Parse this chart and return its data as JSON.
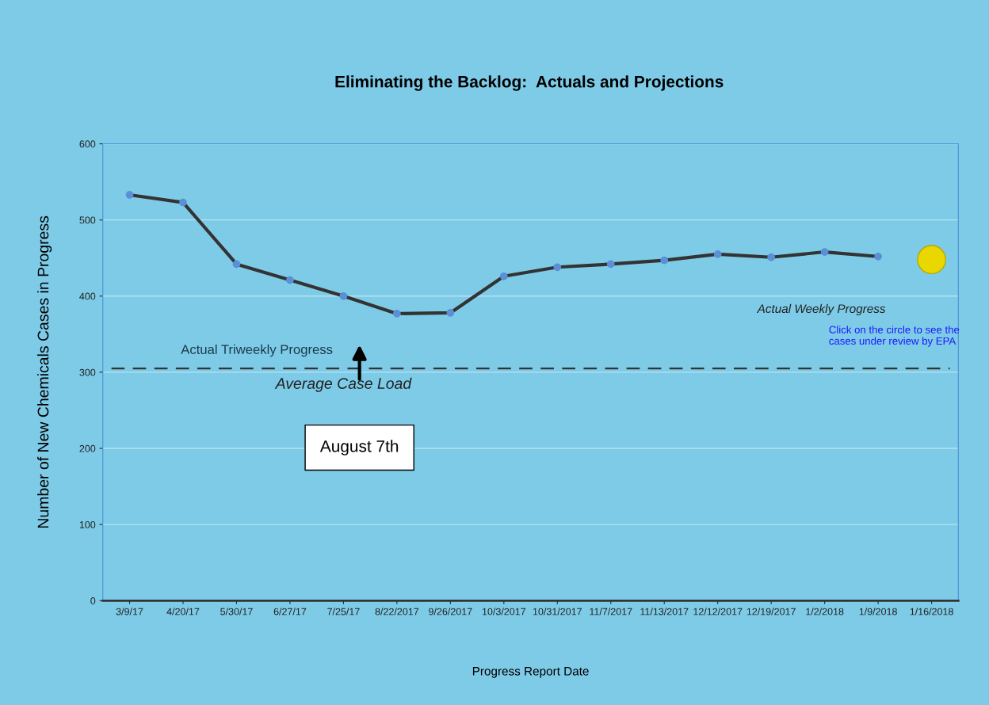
{
  "chart_data": {
    "type": "line",
    "title": "Eliminating the Backlog:  Actuals and Projections",
    "xlabel": "Progress Report Date",
    "ylabel": "Number of New Chemicals Cases in Progress",
    "categories": [
      "3/9/17",
      "4/20/17",
      "5/30/17",
      "6/27/17",
      "7/25/17",
      "8/22/2017",
      "9/26/2017",
      "10/3/2017",
      "10/31/2017",
      "11/7/2017",
      "11/13/2017",
      "12/12/2017",
      "12/19/2017",
      "1/2/2018",
      "1/9/2018",
      "1/16/2018"
    ],
    "series": [
      {
        "color": "#333333",
        "marker": "circle",
        "line_style": "solid",
        "values": [
          533,
          523,
          442,
          421,
          400,
          377,
          378,
          426,
          438,
          442,
          447,
          455,
          451,
          458,
          452,
          null
        ]
      },
      {
        "type": "scatter",
        "color": "#e8d800",
        "marker": "circle",
        "x": [
          "1/16/2018"
        ],
        "values": [
          448
        ]
      }
    ],
    "ylim": [
      0,
      600
    ],
    "yticks": [
      0,
      100,
      200,
      300,
      400,
      500,
      600
    ],
    "grid": "y",
    "ref_lines": [
      {
        "axis": "y",
        "value": 305,
        "label": "Average Case Load",
        "color": "#333333",
        "line_style": "dashed"
      }
    ],
    "annotations": [
      "Actual Triweekly Progress",
      "Actual Weekly Progress",
      "Click on the circle to see the cases under review by EPA",
      "August 7th"
    ]
  }
}
